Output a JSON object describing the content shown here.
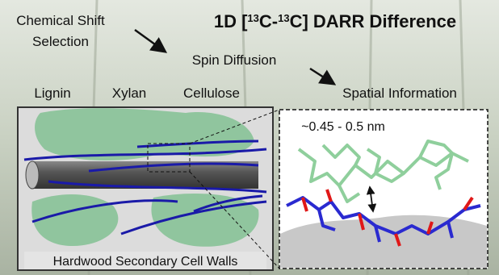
{
  "title": {
    "parts": [
      {
        "text": "1D ["
      },
      {
        "text": "13",
        "sup": true
      },
      {
        "text": "C-"
      },
      {
        "text": "13",
        "sup": true
      },
      {
        "text": "C] DARR Difference"
      }
    ]
  },
  "flow": {
    "step1": [
      "Chemical Shift",
      "Selection"
    ],
    "step2": "Spin Diffusion",
    "step3": "Spatial Information"
  },
  "legend": [
    {
      "name": "Lignin",
      "color": "#3c9c5a"
    },
    {
      "name": "Xylan",
      "color": "#2424c0"
    },
    {
      "name": "Cellulose",
      "color": "#666666"
    }
  ],
  "left_panel": {
    "label": "Hardwood Secondary Cell Walls"
  },
  "right_panel": {
    "distance": "~0.45 - 0.5 nm"
  }
}
